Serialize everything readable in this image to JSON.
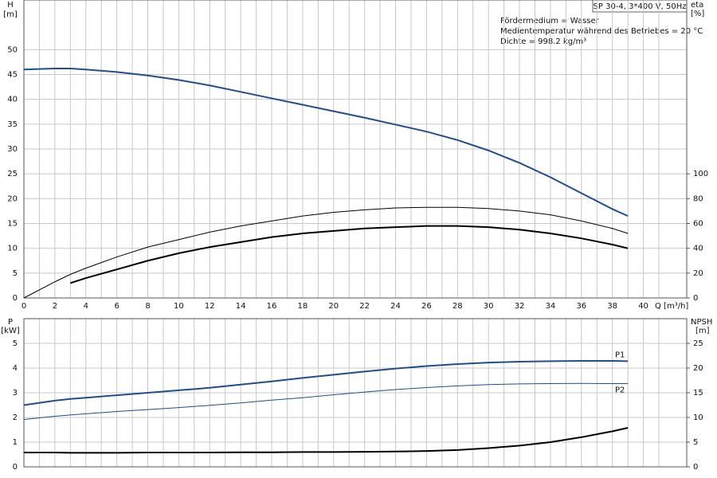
{
  "chart_data": [
    {
      "type": "line",
      "annotations": [
        "SP 30-4, 3*400 V, 50Hz",
        "Fördermedium = Wasser",
        "Medientemperatur während des Betriebes = 20 °C",
        "Dichte = 998.2 kg/m³"
      ],
      "y_label": "H",
      "y_unit": "[m]",
      "y2_label": "eta",
      "y2_unit": "[%]",
      "x_label": "Q [m³/h]",
      "x": [
        0,
        2,
        3,
        4,
        6,
        8,
        10,
        12,
        14,
        16,
        18,
        20,
        22,
        24,
        26,
        28,
        30,
        32,
        34,
        36,
        38,
        39
      ],
      "series": [
        {
          "color": "#1f4e8c",
          "values": [
            46,
            46.2,
            46.2,
            46,
            45.5,
            44.8,
            43.9,
            42.8,
            41.5,
            40.2,
            38.9,
            37.6,
            36.3,
            34.9,
            33.5,
            31.8,
            29.7,
            27.2,
            24.3,
            21.1,
            17.9,
            16.5
          ]
        },
        {
          "color": "#000000",
          "axis": "y2",
          "values": [
            0,
            13,
            19,
            24,
            33,
            41,
            47,
            53,
            58,
            62,
            66,
            69,
            71,
            72.5,
            73,
            73,
            72,
            70,
            67,
            62,
            56,
            52
          ]
        },
        {
          "color": "#000000",
          "axis": "y2",
          "values": [
            null,
            null,
            12,
            16,
            23,
            30,
            36,
            41,
            45,
            49,
            52,
            54,
            56,
            57,
            58,
            58,
            57,
            55,
            52,
            48,
            43,
            40
          ]
        }
      ],
      "xlim": [
        0,
        42.8
      ],
      "xticks": [
        0,
        2,
        4,
        6,
        8,
        10,
        12,
        14,
        16,
        18,
        20,
        22,
        24,
        26,
        28,
        30,
        32,
        34,
        36,
        38,
        40
      ],
      "x_minor_ticks": [
        1,
        3,
        5,
        7,
        9,
        11,
        13,
        15,
        17,
        19,
        21,
        23,
        25,
        27,
        29,
        31,
        33,
        35,
        37,
        39,
        41
      ],
      "ylim": [
        0,
        60
      ],
      "yticks": [
        0,
        5,
        10,
        15,
        20,
        25,
        30,
        35,
        40,
        45,
        50
      ],
      "y2lim": [
        0,
        240
      ],
      "y2ticks": [
        0,
        20,
        40,
        60,
        80,
        100
      ],
      "grid": true
    },
    {
      "type": "line",
      "y_label": "P",
      "y_unit": "[kW]",
      "y2_label": "NPSH",
      "y2_unit": "[m]",
      "x": [
        0,
        2,
        3,
        4,
        6,
        8,
        10,
        12,
        14,
        16,
        18,
        20,
        22,
        24,
        26,
        28,
        30,
        32,
        34,
        36,
        38,
        39
      ],
      "series": [
        {
          "name": "P1",
          "color": "#1f4e8c",
          "values": [
            2.5,
            2.68,
            2.75,
            2.8,
            2.9,
            3.0,
            3.1,
            3.2,
            3.33,
            3.46,
            3.6,
            3.73,
            3.86,
            3.98,
            4.08,
            4.16,
            4.22,
            4.26,
            4.28,
            4.29,
            4.29,
            4.28
          ]
        },
        {
          "name": "P2",
          "color": "#1f4e8c",
          "values": [
            1.92,
            2.05,
            2.1,
            2.15,
            2.24,
            2.32,
            2.4,
            2.49,
            2.59,
            2.7,
            2.8,
            2.92,
            3.03,
            3.13,
            3.21,
            3.28,
            3.33,
            3.36,
            3.37,
            3.38,
            3.37,
            3.37
          ]
        },
        {
          "color": "#000000",
          "axis": "y2",
          "values": [
            2.9,
            2.9,
            2.85,
            2.85,
            2.85,
            2.9,
            2.9,
            2.9,
            2.95,
            2.95,
            3.0,
            3.0,
            3.05,
            3.1,
            3.2,
            3.4,
            3.8,
            4.3,
            5.0,
            6.0,
            7.2,
            7.9
          ]
        }
      ],
      "xlim": [
        0,
        42.8
      ],
      "ylim": [
        0,
        6
      ],
      "yticks": [
        0,
        1,
        2,
        3,
        4,
        5
      ],
      "y2lim": [
        0,
        30
      ],
      "y2ticks": [
        0,
        5,
        10,
        15,
        20,
        25
      ],
      "grid": true
    }
  ]
}
